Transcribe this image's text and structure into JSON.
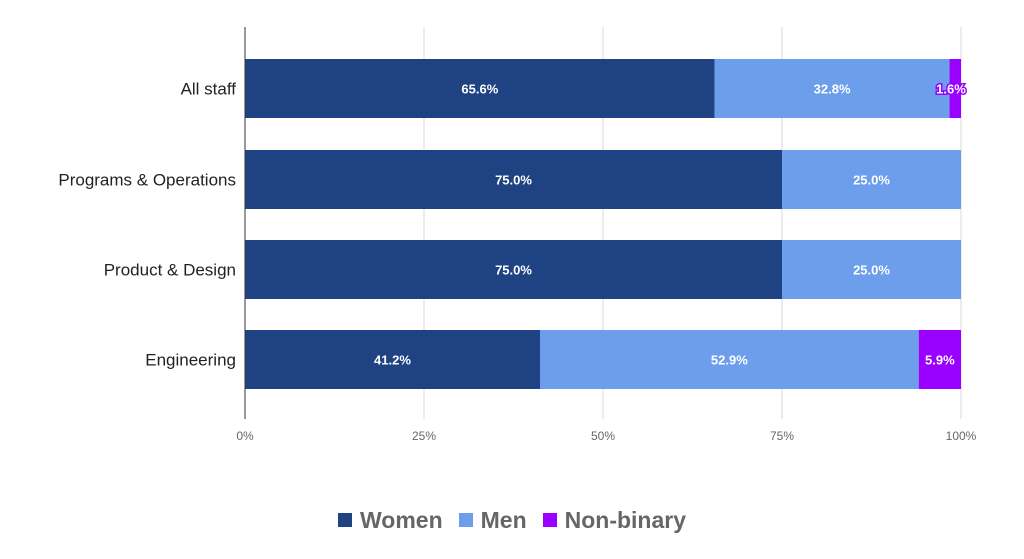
{
  "chart_data": {
    "type": "bar",
    "orientation": "horizontal",
    "stacked": "percent",
    "categories": [
      "All staff",
      "Programs & Operations",
      "Product & Design",
      "Engineering"
    ],
    "series": [
      {
        "name": "Women",
        "color": "#1f4382",
        "values": [
          65.6,
          75.0,
          75.0,
          41.2
        ],
        "labels": [
          "65.6%",
          "75.0%",
          "75.0%",
          "41.2%"
        ]
      },
      {
        "name": "Men",
        "color": "#6d9eeb",
        "values": [
          32.8,
          25.0,
          25.0,
          52.9
        ],
        "labels": [
          "32.8%",
          "25.0%",
          "25.0%",
          "52.9%"
        ]
      },
      {
        "name": "Non-binary",
        "color": "#9900ff",
        "values": [
          1.6,
          0,
          0,
          5.9
        ],
        "labels": [
          "1.6%",
          "",
          "",
          "5.9%"
        ]
      }
    ],
    "x_ticks": [
      "0%",
      "25%",
      "50%",
      "75%",
      "100%"
    ],
    "xlim": [
      0,
      100
    ],
    "grid": true,
    "legend_position": "bottom"
  }
}
